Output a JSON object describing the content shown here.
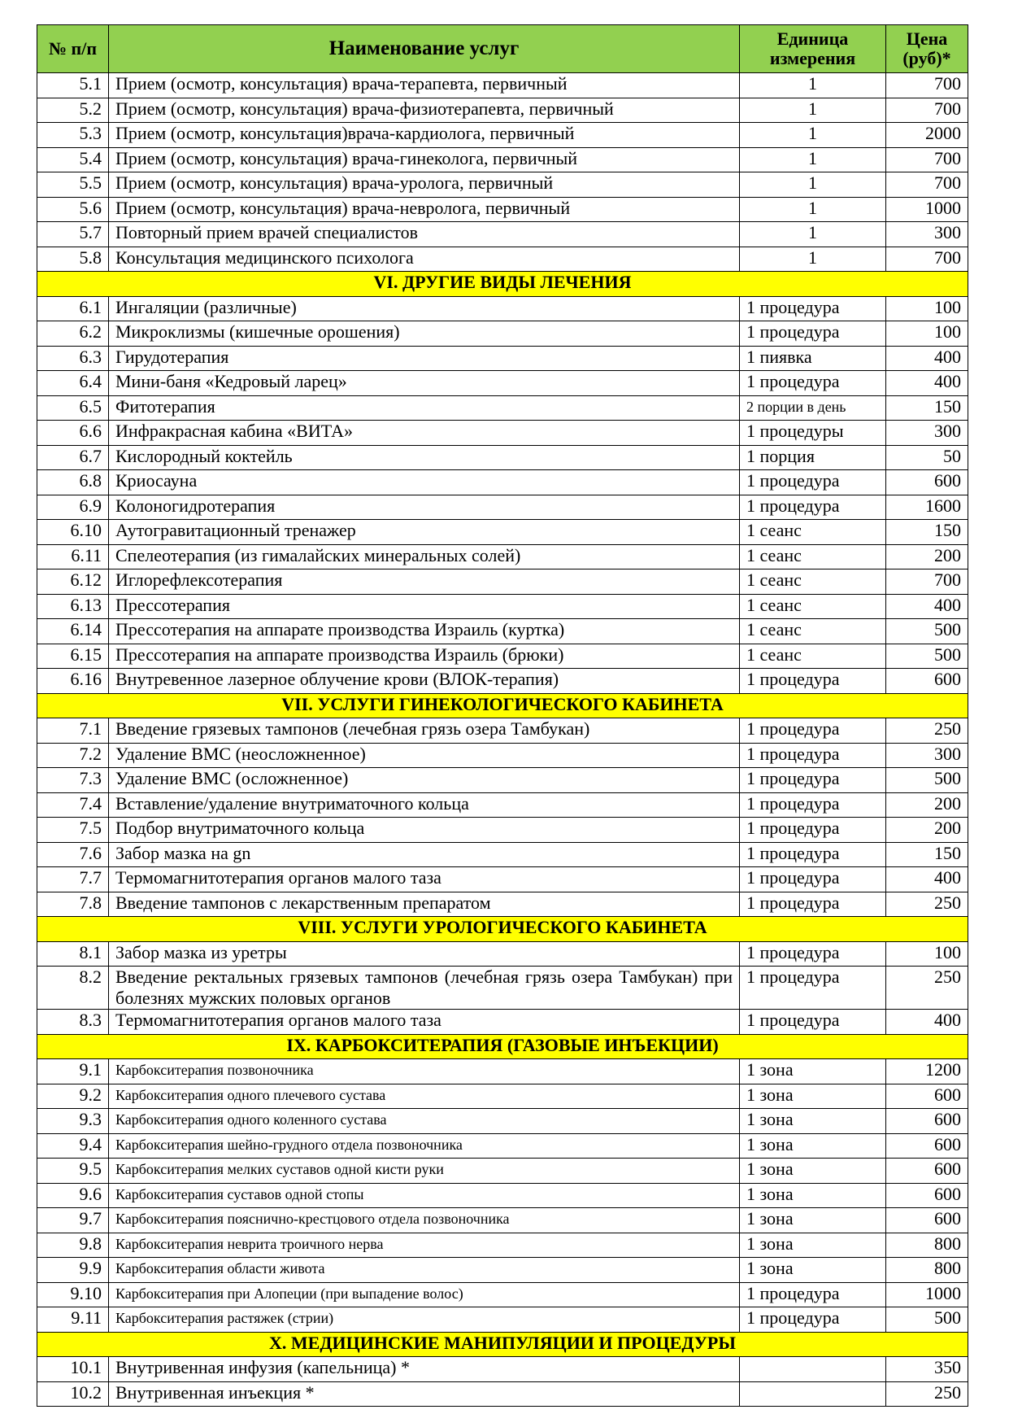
{
  "header": {
    "num": "№ п/п",
    "name": "Наименование услуг",
    "unit": "Единица измерения",
    "price": "Цена (руб)*"
  },
  "groups": [
    {
      "rows": [
        {
          "num": "5.1",
          "name": "Прием (осмотр, консультация) врача-терапевта, первичный",
          "unit": "1",
          "price": 700
        },
        {
          "num": "5.2",
          "name": "Прием (осмотр, консультация) врача-физиотерапевта, первичный",
          "unit": "1",
          "price": 700
        },
        {
          "num": "5.3",
          "name": "Прием (осмотр, консультация)врача-кардиолога, первичный",
          "unit": "1",
          "price": 2000
        },
        {
          "num": "5.4",
          "name": "Прием (осмотр, консультация) врача-гинеколога, первичный",
          "unit": "1",
          "price": 700
        },
        {
          "num": "5.5",
          "name": "Прием (осмотр, консультация) врача-уролога, первичный",
          "unit": "1",
          "price": 700
        },
        {
          "num": "5.6",
          "name": "Прием (осмотр, консультация) врача-невролога, первичный",
          "unit": "1",
          "price": 1000
        },
        {
          "num": "5.7",
          "name": "Повторный прием врачей специалистов",
          "unit": "1",
          "price": 300
        },
        {
          "num": "5.8",
          "name": "Консультация медицинского психолога",
          "unit": "1",
          "price": 700
        }
      ]
    },
    {
      "title": "VI. ДРУГИЕ ВИДЫ ЛЕЧЕНИЯ",
      "rows": [
        {
          "num": "6.1",
          "name": "Ингаляции (различные)",
          "unit": "1 процедура",
          "price": 100
        },
        {
          "num": "6.2",
          "name": "Микроклизмы (кишечные орошения)",
          "unit": "1 процедура",
          "price": 100
        },
        {
          "num": "6.3",
          "name": "Гирудотерапия",
          "unit": "1 пиявка",
          "price": 400
        },
        {
          "num": "6.4",
          "name": "Мини-баня «Кедровый ларец»",
          "unit": "1 процедура",
          "price": 400
        },
        {
          "num": "6.5",
          "name": "Фитотерапия",
          "unit": "2 порции в день",
          "price": 150
        },
        {
          "num": "6.6",
          "name": "Инфракрасная кабина «ВИТА»",
          "unit": "1 процедуры",
          "price": 300
        },
        {
          "num": "6.7",
          "name": "Кислородный коктейль",
          "unit": "1 порция",
          "price": 50
        },
        {
          "num": "6.8",
          "name": "Криосауна",
          "unit": "1 процедура",
          "price": 600
        },
        {
          "num": "6.9",
          "name": "Колоногидротерапия",
          "unit": "1 процедура",
          "price": 1600
        },
        {
          "num": "6.10",
          "name": "Аутогравитационный тренажер",
          "unit": "1 сеанс",
          "price": 150
        },
        {
          "num": "6.11",
          "name": "Спелеотерапия (из гималайских минеральных солей)",
          "unit": "1 сеанс",
          "price": 200
        },
        {
          "num": "6.12",
          "name": "Иглорефлексотерапия",
          "unit": "1 сеанс",
          "price": 700
        },
        {
          "num": "6.13",
          "name": "Прессотерапия",
          "unit": "1 сеанс",
          "price": 400
        },
        {
          "num": "6.14",
          "name": "Прессотерапия на аппарате производства Израиль (куртка)",
          "unit": "1 сеанс",
          "price": 500
        },
        {
          "num": "6.15",
          "name": "Прессотерапия на аппарате производства Израиль (брюки)",
          "unit": "1 сеанс",
          "price": 500
        },
        {
          "num": "6.16",
          "name": "Внутревенное лазерное облучение крови (ВЛОК-терапия)",
          "unit": "1 процедура",
          "price": 600
        }
      ]
    },
    {
      "title": "VII. УСЛУГИ ГИНЕКОЛОГИЧЕСКОГО КАБИНЕТА",
      "rows": [
        {
          "num": "7.1",
          "name": "Введение грязевых тампонов  (лечебная грязь озера Тамбукан)",
          "unit": "1 процедура",
          "price": 250
        },
        {
          "num": "7.2",
          "name": "Удаление ВМС (неосложненное)",
          "unit": "1 процедура",
          "price": 300
        },
        {
          "num": "7.3",
          "name": "Удаление ВМС (осложненное)",
          "unit": "1 процедура",
          "price": 500
        },
        {
          "num": "7.4",
          "name": "Вставление/удаление внутриматочного кольца",
          "unit": "1 процедура",
          "price": 200
        },
        {
          "num": "7.5",
          "name": "Подбор внутриматочного кольца",
          "unit": "1 процедура",
          "price": 200
        },
        {
          "num": "7.6",
          "name": "Забор мазка на gn",
          "unit": "1 процедура",
          "price": 150
        },
        {
          "num": "7.7",
          "name": "Термомагнитотерапия органов малого таза",
          "unit": "1 процедура",
          "price": 400
        },
        {
          "num": "7.8",
          "name": "Введение тампонов с лекарственным препаратом",
          "unit": "1 процедура",
          "price": 250
        }
      ]
    },
    {
      "title": "VIII. УСЛУГИ УРОЛОГИЧЕСКОГО КАБИНЕТА",
      "rows": [
        {
          "num": "8.1",
          "name": "Забор мазка из уретры",
          "unit": "1 процедура",
          "price": 100
        },
        {
          "num": "8.2",
          "name": "Введение ректальных грязевых тампонов (лечебная грязь озера Тамбукан) при болезнях мужских половых органов",
          "unit": "1 процедура",
          "price": 250
        },
        {
          "num": "8.3",
          "name": "Термомагнитотерапия органов малого таза",
          "unit": "1 процедура",
          "price": 400
        }
      ]
    },
    {
      "title": "IX. КАРБОКСИТЕРАПИЯ (ГАЗОВЫЕ ИНЪЕКЦИИ)",
      "rows": [
        {
          "num": "9.1",
          "name": "Карбокситерапия позвоночника",
          "unit": "1 зона",
          "price": 1200
        },
        {
          "num": "9.2",
          "name": "Карбокситерапия одного плечевого сустава",
          "unit": "1 зона",
          "price": 600
        },
        {
          "num": "9.3",
          "name": "Карбокситерапия одного коленного сустава",
          "unit": "1 зона",
          "price": 600
        },
        {
          "num": "9.4",
          "name": "Карбокситерапия шейно-грудного отдела позвоночника",
          "unit": "1 зона",
          "price": 600
        },
        {
          "num": "9.5",
          "name": "Карбокситерапия мелких суставов одной кисти руки",
          "unit": "1 зона",
          "price": 600
        },
        {
          "num": "9.6",
          "name": "Карбокситерапия суставов одной стопы",
          "unit": "1 зона",
          "price": 600
        },
        {
          "num": "9.7",
          "name": "Карбокситерапия пояснично-крестцового отдела позвоночника",
          "unit": "1 зона",
          "price": 600
        },
        {
          "num": "9.8",
          "name": "Карбокситерапия неврита троичного нерва",
          "unit": "1 зона",
          "price": 800
        },
        {
          "num": "9.9",
          "name": "Карбокситерапия области живота",
          "unit": "1 зона",
          "price": 800
        },
        {
          "num": "9.10",
          "name": "Карбокситерапия при Алопеции (при выпадение волос)",
          "unit": "1 процедура",
          "price": 1000
        },
        {
          "num": "9.11",
          "name": "Карбокситерапия растяжек (стрии)",
          "unit": "1 процедура",
          "price": 500
        }
      ]
    },
    {
      "title": "X. МЕДИЦИНСКИЕ МАНИПУЛЯЦИИ И ПРОЦЕДУРЫ",
      "rows": [
        {
          "num": "10.1",
          "name": " Внутривенная инфузия (капельница) *",
          "price": 350
        },
        {
          "num": "10.2",
          "name": "Внутривенная инъекция *",
          "price": 250
        }
      ]
    }
  ]
}
